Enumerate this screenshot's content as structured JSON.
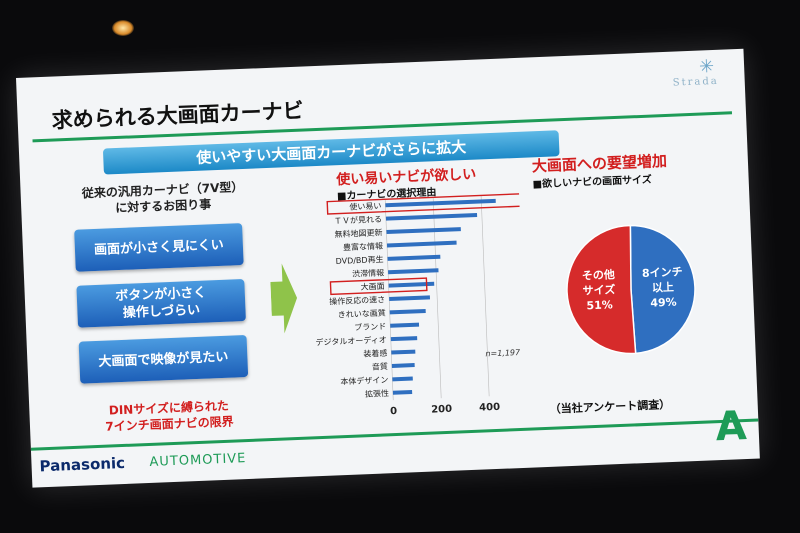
{
  "slide": {
    "title": "求められる大画面カーナビ",
    "banner": "使いやすい大画面カーナビがさらに拡大",
    "brand_mark": "✳",
    "brand_name": "Strada"
  },
  "left": {
    "heading": "従来の汎用カーナビ（7V型）\nに対するお困り事",
    "items": [
      "画面が小さく見にくい",
      "ボタンが小さく\n操作しづらい",
      "大画面で映像が見たい"
    ],
    "note": "DINサイズに縛られた\n7インチ画面ナビの限界"
  },
  "middle": {
    "title": "使い易いナビが欲しい",
    "subtitle": "■カーナビの選択理由",
    "sample_note": "n=1,197"
  },
  "right": {
    "title": "大画面への要望増加",
    "subtitle": "■欲しいナビの画面サイズ",
    "survey_note": "（当社アンケート調査）"
  },
  "chart_data": [
    {
      "type": "bar",
      "orientation": "horizontal",
      "categories": [
        "使い易い",
        "ＴＶが見れる",
        "無料地図更新",
        "豊富な情報",
        "DVD/BD再生",
        "渋滞情報",
        "大画面",
        "操作反応の速さ",
        "きれいな画質",
        "ブランド",
        "デジタルオーディオ",
        "装着感",
        "音質",
        "本体デザイン",
        "拡張性"
      ],
      "values": [
        460,
        380,
        310,
        290,
        220,
        210,
        190,
        170,
        150,
        120,
        110,
        100,
        95,
        85,
        80
      ],
      "xlim": [
        0,
        500
      ],
      "xticks": [
        0,
        200,
        400
      ],
      "highlighted": [
        "使い易い",
        "大画面"
      ],
      "bar_color": "#2f6fc0"
    },
    {
      "type": "pie",
      "slices": [
        {
          "name": "その他\nサイズ",
          "value": 51,
          "label": "51%",
          "color": "#d62b2b"
        },
        {
          "name": "8インチ\n以上",
          "value": 49,
          "label": "49%",
          "color": "#2f6fc0"
        }
      ]
    }
  ],
  "footer": {
    "brand": "Panasonic",
    "division": "AUTOMOTIVE",
    "mark": "A"
  },
  "colors": {
    "accent_green": "#1e9b57",
    "banner_blue": "#1c89c7",
    "red": "#d21f1f"
  }
}
